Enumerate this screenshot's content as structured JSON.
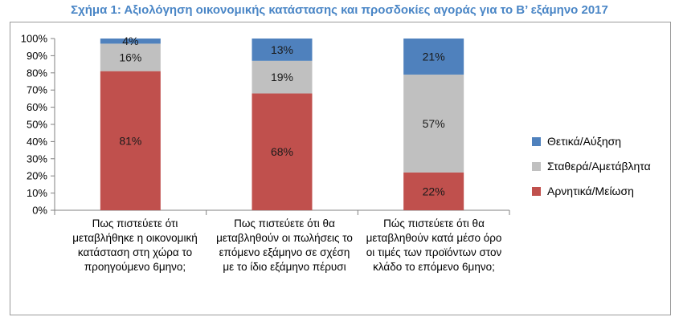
{
  "chart_data": {
    "type": "bar",
    "stacked": true,
    "title": "Σχήμα 1: Αξιολόγηση οικονομικής κατάστασης και προσδοκίες αγοράς για το Β’ εξάμηνο 2017",
    "categories": [
      "Πως πιστεύετε ότι μεταβλήθηκε η οικονομική κατάσταση στη χώρα το προηγούμενο 6μηνο;",
      "Πως πιστεύετε ότι θα μεταβληθούν οι πωλήσεις το επόμενο εξάμηνο σε σχέση με το ίδιο εξάμηνο πέρυσι",
      "Πώς πιστεύετε ότι θα μεταβληθούν κατά μέσο όρο οι τιμές των προϊόντων στον κλάδο το επόμενο 6μηνο;"
    ],
    "series": [
      {
        "name": "Αρνητικά/Μείωση",
        "values": [
          81,
          68,
          22
        ],
        "labels": [
          "81%",
          "68%",
          "22%"
        ],
        "color": "#c0504d"
      },
      {
        "name": "Σταθερά/Αμετάβλητα",
        "values": [
          16,
          19,
          57
        ],
        "labels": [
          "16%",
          "19%",
          "57%"
        ],
        "color": "#c0c0c0"
      },
      {
        "name": "Θετικά/Αύξηση",
        "values": [
          4,
          13,
          21
        ],
        "labels": [
          "4%",
          "13%",
          "21%"
        ],
        "color": "#4f81bd"
      }
    ],
    "legend_order": [
      2,
      1,
      0
    ],
    "ylim": [
      0,
      100
    ],
    "yticks": [
      "0%",
      "10%",
      "20%",
      "30%",
      "40%",
      "50%",
      "60%",
      "70%",
      "80%",
      "90%",
      "100%"
    ],
    "legend_position": "right"
  }
}
